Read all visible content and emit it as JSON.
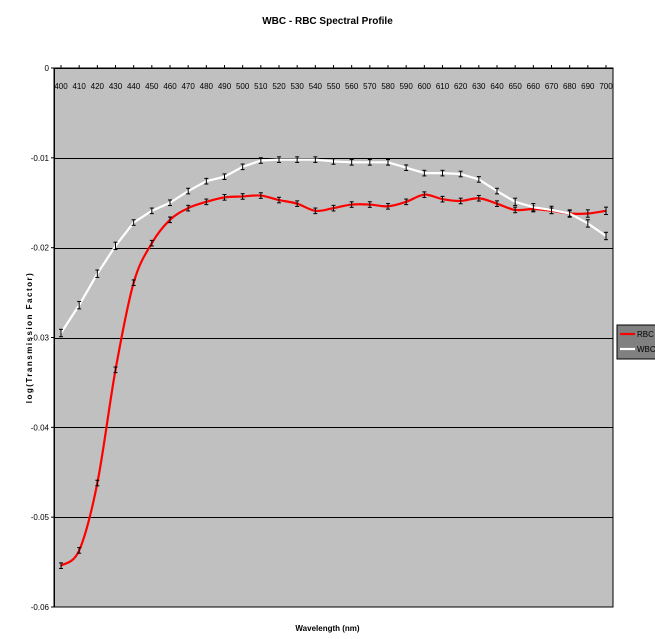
{
  "chart_data": {
    "type": "line",
    "title": "WBC - RBC Spectral Profile",
    "xlabel": "Wavelength (nm)",
    "ylabel": "log(Transmission Factor)",
    "x": [
      400,
      410,
      420,
      430,
      440,
      450,
      460,
      470,
      480,
      490,
      500,
      510,
      520,
      530,
      540,
      550,
      560,
      570,
      580,
      590,
      600,
      610,
      620,
      630,
      640,
      650,
      660,
      670,
      680,
      690,
      700
    ],
    "x_tick_labels": [
      "400",
      "410",
      "420",
      "430",
      "440",
      "450",
      "460",
      "470",
      "480",
      "490",
      "500",
      "510",
      "520",
      "530",
      "540",
      "550",
      "560",
      "570",
      "580",
      "590",
      "600",
      "610",
      "620",
      "630",
      "640",
      "650",
      "660",
      "670",
      "680",
      "690",
      "700"
    ],
    "ylim": [
      -0.06,
      0
    ],
    "y_ticks": [
      0,
      -0.01,
      -0.02,
      -0.03,
      -0.04,
      -0.05,
      -0.06
    ],
    "y_tick_labels": [
      "0",
      "-0.01",
      "-0.02",
      "-0.03",
      "-0.04",
      "-0.05",
      "-0.06"
    ],
    "x_axis_position": "top",
    "grid": true,
    "legend_position": "right",
    "error_bars": true,
    "series": [
      {
        "name": "RBC",
        "color": "#ff0000",
        "smooth": true,
        "values": [
          -0.0554,
          -0.0537,
          -0.0462,
          -0.0336,
          -0.0239,
          -0.0195,
          -0.0169,
          -0.0156,
          -0.0149,
          -0.0144,
          -0.0143,
          -0.0142,
          -0.0147,
          -0.0151,
          -0.0159,
          -0.0156,
          -0.0152,
          -0.0152,
          -0.0154,
          -0.0149,
          -0.0141,
          -0.0146,
          -0.0148,
          -0.0145,
          -0.0151,
          -0.0158,
          -0.0157,
          -0.0159,
          -0.0162,
          -0.0162,
          -0.0159
        ],
        "errors": [
          0.0002,
          0.0002,
          0.0002,
          0.0002,
          0.0002,
          0.0002,
          0.0002,
          0.0002,
          0.0002,
          0.0002,
          0.0002,
          0.0002,
          0.0002,
          0.0002,
          0.0002,
          0.0002,
          0.0002,
          0.0002,
          0.0002,
          0.0002,
          0.0002,
          0.0002,
          0.0002,
          0.0002,
          0.0002,
          0.0002,
          0.0002,
          0.0002,
          0.0002,
          0.0003,
          0.0003
        ]
      },
      {
        "name": "WBC",
        "color": "#ffffff",
        "smooth": false,
        "values": [
          -0.0295,
          -0.0264,
          -0.0229,
          -0.0198,
          -0.0172,
          -0.0159,
          -0.015,
          -0.0137,
          -0.0126,
          -0.0121,
          -0.011,
          -0.0103,
          -0.0102,
          -0.0102,
          -0.0102,
          -0.0104,
          -0.0105,
          -0.0105,
          -0.0105,
          -0.0111,
          -0.0117,
          -0.0117,
          -0.0118,
          -0.0124,
          -0.0137,
          -0.0149,
          -0.0155,
          -0.0158,
          -0.0162,
          -0.0173,
          -0.0187
        ],
        "errors": [
          0.0003,
          0.0003,
          0.0003,
          0.0003,
          0.0002,
          0.0002,
          0.0002,
          0.0002,
          0.0002,
          0.0002,
          0.0002,
          0.0002,
          0.0002,
          0.0002,
          0.0002,
          0.0002,
          0.0002,
          0.0002,
          0.0002,
          0.0002,
          0.0002,
          0.0002,
          0.0002,
          0.0002,
          0.0002,
          0.0003,
          0.0003,
          0.0003,
          0.0003,
          0.0003,
          0.0003
        ]
      }
    ]
  },
  "colors": {
    "plot_background": "#c0c0c0",
    "gridline": "#000000",
    "axis": "#000000",
    "legend_background": "#808080"
  }
}
